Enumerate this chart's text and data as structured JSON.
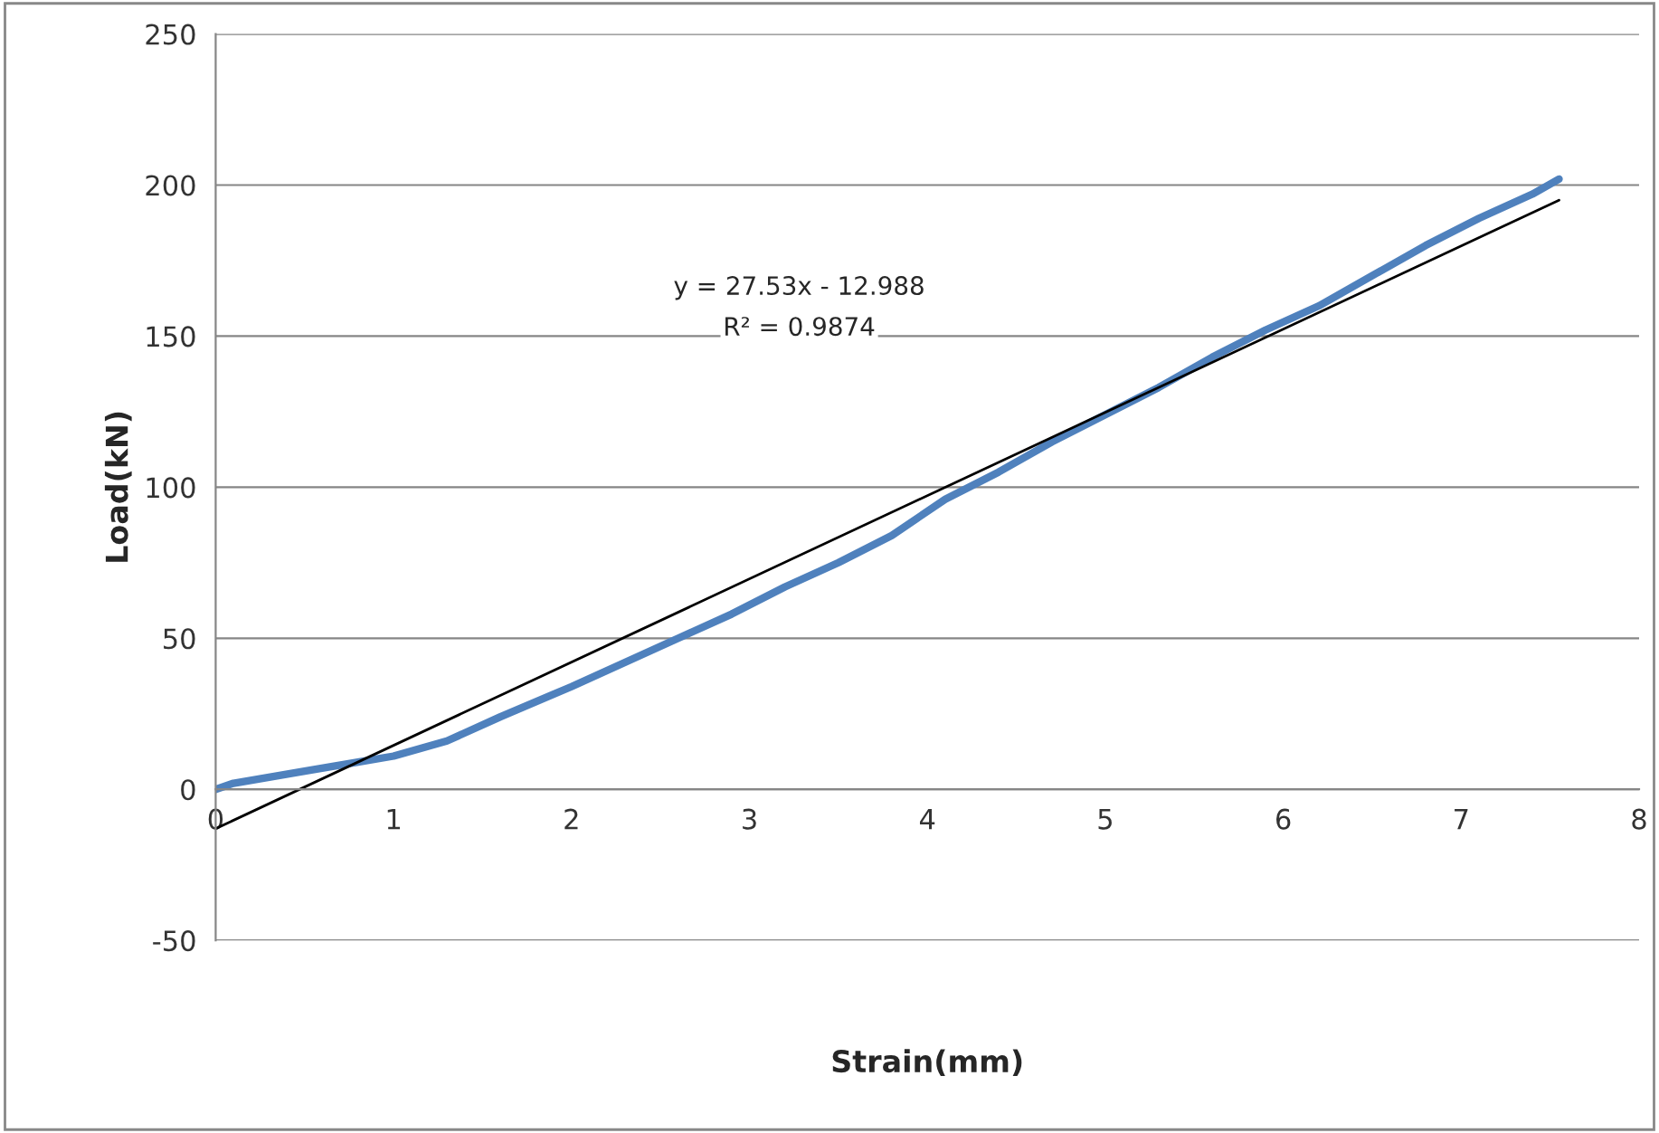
{
  "chart_data": {
    "type": "line",
    "xlabel": "Strain(mm)",
    "ylabel": "Load(kN)",
    "xlim": [
      0,
      8
    ],
    "xticks": [
      0,
      1,
      2,
      3,
      4,
      5,
      6,
      7,
      8
    ],
    "ylim": [
      -50,
      250
    ],
    "yticks": [
      -50,
      0,
      50,
      100,
      150,
      200,
      250
    ],
    "grid": "y",
    "legend": false,
    "marker": "none",
    "series": [
      {
        "color": "#4f81bd",
        "x": [
          0,
          0.1,
          0.3,
          0.5,
          0.8,
          1.0,
          1.3,
          1.6,
          2.0,
          2.3,
          2.6,
          2.9,
          3.2,
          3.5,
          3.8,
          4.1,
          4.4,
          4.7,
          5.0,
          5.3,
          5.6,
          5.9,
          6.2,
          6.5,
          6.8,
          7.1,
          7.4,
          7.55
        ],
        "values": [
          0,
          2,
          4,
          6,
          9,
          11,
          16,
          24,
          34,
          42,
          50,
          58,
          67,
          75,
          84,
          96,
          105,
          115,
          124,
          133,
          143,
          152,
          160,
          170,
          180,
          189,
          197,
          202
        ]
      },
      {
        "color": "#000000",
        "x": [
          0,
          7.55
        ],
        "values": [
          -13,
          195
        ]
      }
    ],
    "annotations": [
      "y = 27.53x - 12.988",
      "R² = 0.9874"
    ]
  }
}
